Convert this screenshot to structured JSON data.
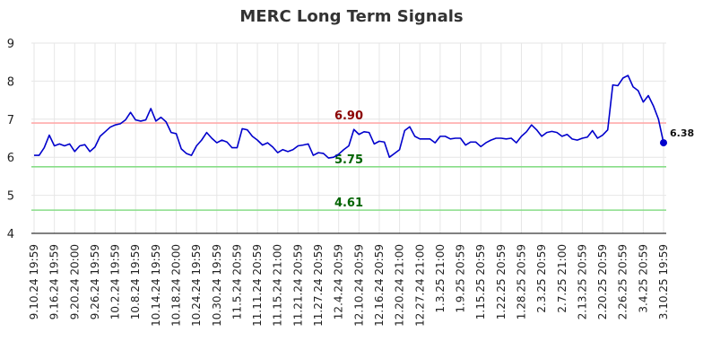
{
  "chart_data": {
    "type": "line",
    "title": "MERC Long Term Signals",
    "ylim": [
      4,
      9
    ],
    "yticks": [
      "4",
      "5",
      "6",
      "7",
      "8",
      "9"
    ],
    "grid": true,
    "colors": {
      "line": "#0000cc",
      "resistance": "#ffaaaa",
      "support": "#88dd88",
      "resistance_label": "#8b0000",
      "support_label": "#006400"
    },
    "xticks": [
      {
        "index": 0,
        "label": "9.10.24 19:59"
      },
      {
        "index": 4,
        "label": "9.16.24 19:59"
      },
      {
        "index": 8,
        "label": "9.20.24 20:00"
      },
      {
        "index": 12,
        "label": "9.26.24 19:59"
      },
      {
        "index": 16,
        "label": "10.2.24 19:59"
      },
      {
        "index": 20,
        "label": "10.8.24 19:59"
      },
      {
        "index": 24,
        "label": "10.14.24 19:59"
      },
      {
        "index": 28,
        "label": "10.18.24 20:00"
      },
      {
        "index": 32,
        "label": "10.24.24 19:59"
      },
      {
        "index": 36,
        "label": "10.30.24 19:59"
      },
      {
        "index": 40,
        "label": "11.5.24 20:59"
      },
      {
        "index": 44,
        "label": "11.11.24 20:59"
      },
      {
        "index": 48,
        "label": "11.15.24 21:00"
      },
      {
        "index": 52,
        "label": "11.21.24 20:59"
      },
      {
        "index": 56,
        "label": "11.27.24 20:59"
      },
      {
        "index": 60,
        "label": "12.4.24 20:59"
      },
      {
        "index": 64,
        "label": "12.10.24 20:59"
      },
      {
        "index": 68,
        "label": "12.16.24 20:59"
      },
      {
        "index": 72,
        "label": "12.20.24 21:00"
      },
      {
        "index": 76,
        "label": "12.27.24 21:00"
      },
      {
        "index": 80,
        "label": "1.3.25 21:00"
      },
      {
        "index": 84,
        "label": "1.9.25 20:59"
      },
      {
        "index": 88,
        "label": "1.15.25 20:59"
      },
      {
        "index": 92,
        "label": "1.22.25 20:59"
      },
      {
        "index": 96,
        "label": "1.28.25 20:59"
      },
      {
        "index": 100,
        "label": "2.3.25 20:59"
      },
      {
        "index": 104,
        "label": "2.7.25 21:00"
      },
      {
        "index": 108,
        "label": "2.13.25 20:59"
      },
      {
        "index": 112,
        "label": "2.20.25 20:59"
      },
      {
        "index": 116,
        "label": "2.26.25 20:59"
      },
      {
        "index": 120,
        "label": "3.4.25 20:59"
      },
      {
        "index": 124,
        "label": "3.10.25 19:59"
      }
    ],
    "values": [
      6.05,
      6.05,
      6.25,
      6.58,
      6.3,
      6.35,
      6.3,
      6.35,
      6.15,
      6.3,
      6.33,
      6.15,
      6.27,
      6.55,
      6.67,
      6.79,
      6.85,
      6.88,
      6.98,
      7.18,
      6.98,
      6.95,
      6.98,
      7.28,
      6.95,
      7.05,
      6.93,
      6.65,
      6.62,
      6.22,
      6.1,
      6.05,
      6.3,
      6.45,
      6.65,
      6.5,
      6.38,
      6.45,
      6.4,
      6.25,
      6.25,
      6.75,
      6.72,
      6.55,
      6.45,
      6.32,
      6.38,
      6.27,
      6.12,
      6.2,
      6.15,
      6.2,
      6.3,
      6.32,
      6.35,
      6.05,
      6.12,
      6.1,
      5.98,
      6.0,
      6.08,
      6.2,
      6.3,
      6.73,
      6.6,
      6.67,
      6.65,
      6.35,
      6.42,
      6.4,
      6.0,
      6.1,
      6.2,
      6.7,
      6.8,
      6.55,
      6.48,
      6.48,
      6.48,
      6.38,
      6.55,
      6.55,
      6.48,
      6.5,
      6.5,
      6.32,
      6.4,
      6.4,
      6.28,
      6.38,
      6.45,
      6.5,
      6.5,
      6.48,
      6.5,
      6.38,
      6.55,
      6.67,
      6.85,
      6.72,
      6.55,
      6.65,
      6.68,
      6.65,
      6.55,
      6.6,
      6.48,
      6.45,
      6.5,
      6.53,
      6.7,
      6.5,
      6.58,
      6.72,
      7.9,
      7.88,
      8.08,
      8.15,
      7.85,
      7.75,
      7.45,
      7.62,
      7.35,
      7.0,
      6.38
    ],
    "levels": [
      {
        "value": 6.9,
        "label": "6.90",
        "kind": "resistance"
      },
      {
        "value": 5.75,
        "label": "5.75",
        "kind": "support"
      },
      {
        "value": 4.61,
        "label": "4.61",
        "kind": "support"
      }
    ],
    "last_value_label": "6.38"
  }
}
